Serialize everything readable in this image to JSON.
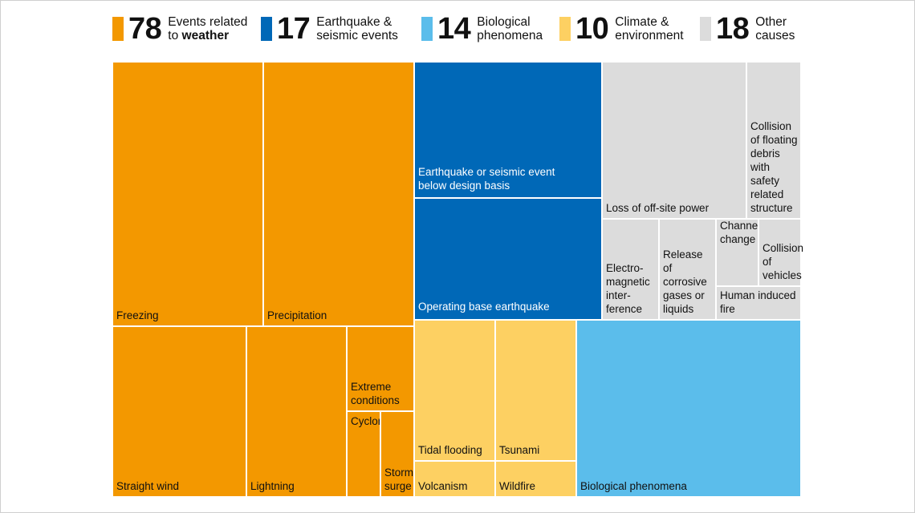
{
  "chart_data": {
    "type": "treemap",
    "categories": [
      {
        "key": "weather",
        "total": "78",
        "label_line1": "Events related",
        "label_line2_prefix": "to ",
        "label_line2_bold": "weather",
        "color": "#F39800"
      },
      {
        "key": "seismic",
        "total": "17",
        "label_line1": "Earthquake &",
        "label_line2_prefix": "seismic events",
        "label_line2_bold": "",
        "color": "#0068B7"
      },
      {
        "key": "bio",
        "total": "14",
        "label_line1": "Biological",
        "label_line2_prefix": "phenomena",
        "label_line2_bold": "",
        "color": "#5BBDEB"
      },
      {
        "key": "climate",
        "total": "10",
        "label_line1": "Climate &",
        "label_line2_prefix": "environment",
        "label_line2_bold": "",
        "color": "#FDD062"
      },
      {
        "key": "other",
        "total": "18",
        "label_line1": "Other",
        "label_line2_prefix": "causes",
        "label_line2_bold": "",
        "color": "#DCDCDC"
      }
    ],
    "nodes": [
      {
        "id": "freezing",
        "category": "weather",
        "label": "Freezing",
        "value": 20
      },
      {
        "id": "precipitation",
        "category": "weather",
        "label": "Precipitation",
        "value": 20
      },
      {
        "id": "straight-wind",
        "category": "weather",
        "label": "Straight wind",
        "value": 14
      },
      {
        "id": "lightning",
        "category": "weather",
        "label": "Lightning",
        "value": 10
      },
      {
        "id": "extreme-conditions",
        "category": "weather",
        "label": "Extreme conditions",
        "value": 6
      },
      {
        "id": "cyclone",
        "category": "weather",
        "label": "Cyclone",
        "value": 4
      },
      {
        "id": "storm-surge",
        "category": "weather",
        "label": "Storm surge",
        "value": 4
      },
      {
        "id": "eq-below-design",
        "category": "seismic",
        "label": "Earthquake or seismic event below design basis",
        "value": 9
      },
      {
        "id": "operating-base-eq",
        "category": "seismic",
        "label": "Operating base earthquake",
        "value": 8
      },
      {
        "id": "tidal-flooding",
        "category": "climate",
        "label": "Tidal flooding",
        "value": 3
      },
      {
        "id": "tsunami",
        "category": "climate",
        "label": "Tsunami",
        "value": 3
      },
      {
        "id": "volcanism",
        "category": "climate",
        "label": "Volcanism",
        "value": 2
      },
      {
        "id": "wildfire",
        "category": "climate",
        "label": "Wildfire",
        "value": 2
      },
      {
        "id": "biological",
        "category": "bio",
        "label": "Biological phenomena",
        "value": 14
      },
      {
        "id": "offsite-power",
        "category": "other",
        "label": "Loss of off-site power",
        "value": 5
      },
      {
        "id": "floating-debris",
        "category": "other",
        "label": "Collision of floating debris with safety related structure",
        "value": 3
      },
      {
        "id": "em-interference",
        "category": "other",
        "label": "Electro-magnetic interference",
        "value": 2
      },
      {
        "id": "corrosive-gases",
        "category": "other",
        "label": "Release of corrosive gases or liquids",
        "value": 2
      },
      {
        "id": "channel-change",
        "category": "other",
        "label": "Channel change",
        "value": 1
      },
      {
        "id": "vehicle-collision",
        "category": "other",
        "label": "Collision of vehicles",
        "value": 1
      },
      {
        "id": "human-fire",
        "category": "other",
        "label": "Human induced fire",
        "value": 1
      }
    ],
    "title": "",
    "xlabel": "",
    "ylabel": ""
  }
}
